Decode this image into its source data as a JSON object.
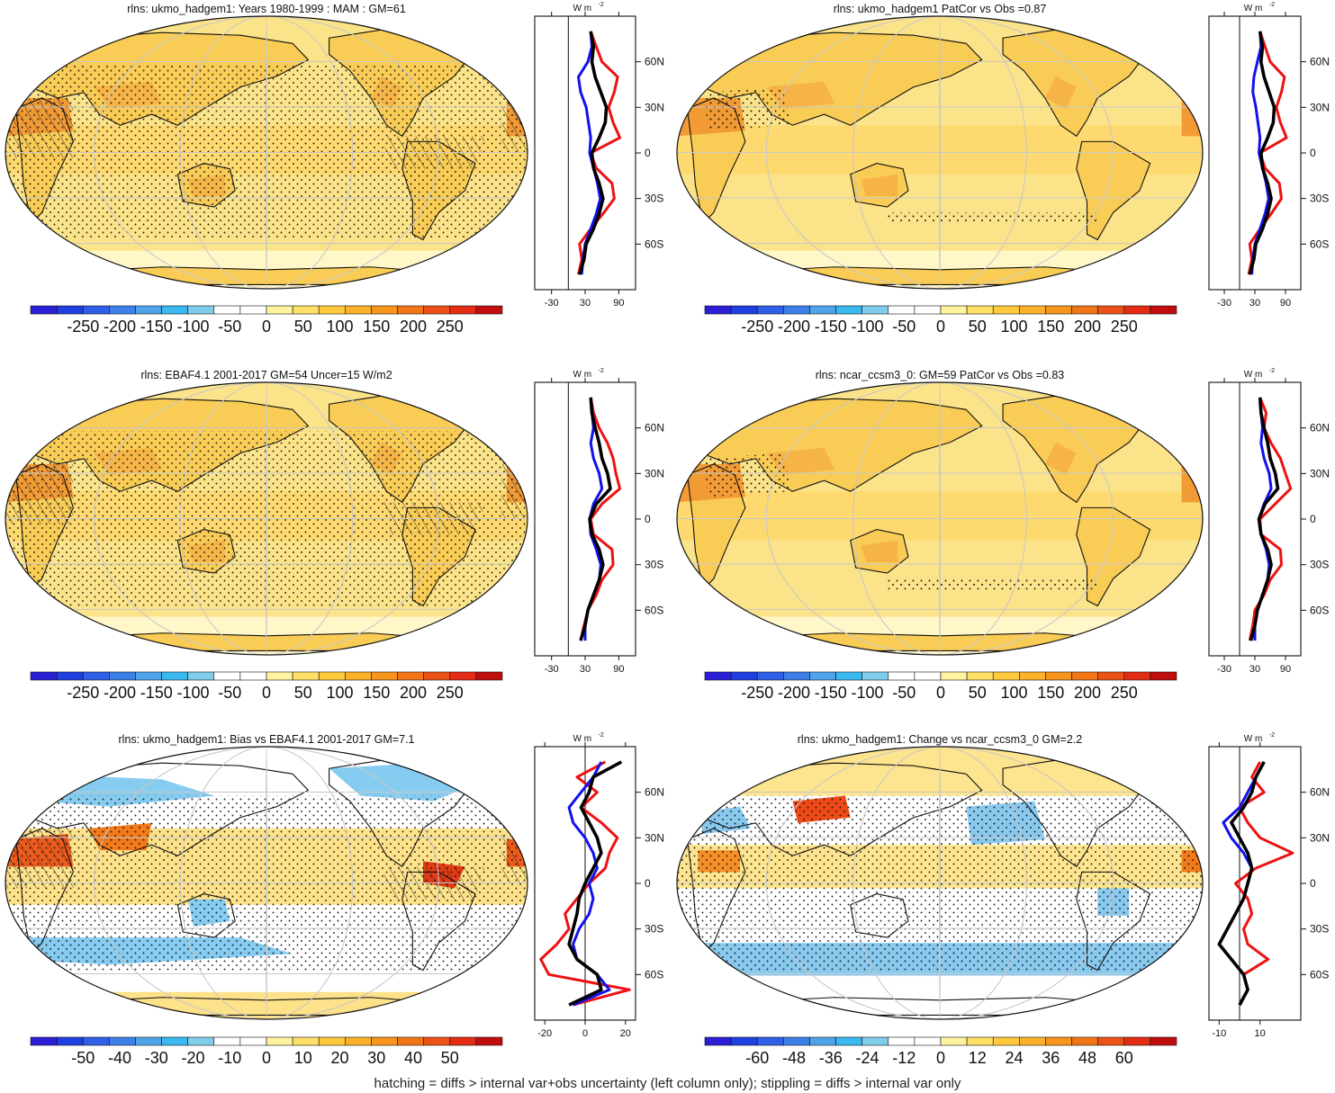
{
  "footnote": "hatching = diffs > internal var+obs uncertainty (left column only); stippling = diffs > internal var only",
  "colors": {
    "scale_abs": [
      "#2a1fd6",
      "#1f3fe0",
      "#2f5fe6",
      "#3d7fe8",
      "#4fa3ea",
      "#39b9f0",
      "#7fcdea",
      "#ffffff",
      "#ffffff",
      "#fff3a0",
      "#ffe067",
      "#ffc93c",
      "#fdb12a",
      "#f7951c",
      "#f27617",
      "#ec5215",
      "#e42b14",
      "#c00d0d"
    ],
    "profile_blue": "#1111ee",
    "profile_red": "#ee1111",
    "profile_black": "#000000",
    "ocean_base": "#fbe38a",
    "land_base": "#f9cc55",
    "hot": "#f29a33"
  },
  "chart_data": [
    {
      "id": "p1",
      "type": "heatmap",
      "title": "rlns: ukmo_hadgem1: Years 1980-1999 : MAM : GM=61",
      "colorbar_ticks": [
        "-250",
        "-200",
        "-150",
        "-100",
        "-50",
        "0",
        "50",
        "100",
        "150",
        "200",
        "250"
      ],
      "style": "abs",
      "hatch": true,
      "stipple": true,
      "profile": {
        "unit": "W m",
        "unit_sup": "-2",
        "xticks": [
          "-30",
          "30",
          "90"
        ],
        "xlim": [
          -60,
          120
        ],
        "yticks": [
          "60N",
          "30N",
          "0",
          "30S",
          "60S"
        ],
        "series": [
          {
            "color": "black",
            "lat": [
              80,
              70,
              60,
              50,
              40,
              30,
              20,
              10,
              0,
              -10,
              -20,
              -30,
              -40,
              -50,
              -60,
              -70,
              -80
            ],
            "values": [
              40,
              45,
              42,
              48,
              58,
              68,
              66,
              55,
              42,
              45,
              55,
              62,
              55,
              45,
              32,
              28,
              20
            ]
          },
          {
            "color": "blue",
            "lat": [
              80,
              70,
              60,
              50,
              40,
              30,
              20,
              10,
              0,
              -10,
              -20,
              -30,
              -40,
              -50,
              -60,
              -70,
              -80
            ],
            "values": [
              40,
              42,
              35,
              18,
              22,
              32,
              36,
              40,
              38,
              45,
              52,
              57,
              50,
              40,
              30,
              26,
              24
            ]
          },
          {
            "color": "red",
            "lat": [
              80,
              70,
              60,
              50,
              40,
              30,
              20,
              10,
              0,
              -10,
              -20,
              -30,
              -40,
              -50,
              -60,
              -70,
              -80
            ],
            "values": [
              40,
              50,
              60,
              88,
              82,
              72,
              80,
              92,
              40,
              50,
              78,
              82,
              62,
              40,
              20,
              24,
              18
            ]
          }
        ]
      }
    },
    {
      "id": "p2",
      "type": "heatmap",
      "title": "rlns: ukmo_hadgem1 PatCor vs Obs =0.87",
      "colorbar_ticks": [
        "-250",
        "-200",
        "-150",
        "-100",
        "-50",
        "0",
        "50",
        "100",
        "150",
        "200",
        "250"
      ],
      "style": "abs",
      "hatch": false,
      "stipple": true,
      "profile": {
        "unit": "W m",
        "unit_sup": "-2",
        "xticks": [
          "-30",
          "30",
          "90"
        ],
        "xlim": [
          -60,
          120
        ],
        "yticks": [
          "60N",
          "30N",
          "0",
          "30S",
          "60S"
        ],
        "series": [
          {
            "color": "black",
            "lat": [
              80,
              70,
              60,
              50,
              40,
              30,
              20,
              10,
              0,
              -10,
              -20,
              -30,
              -40,
              -50,
              -60,
              -70,
              -80
            ],
            "values": [
              40,
              45,
              42,
              48,
              58,
              68,
              66,
              55,
              42,
              45,
              55,
              62,
              55,
              45,
              32,
              28,
              20
            ]
          },
          {
            "color": "blue",
            "lat": [
              80,
              70,
              60,
              50,
              40,
              30,
              20,
              10,
              0,
              -10,
              -20,
              -30,
              -40,
              -50,
              -60,
              -70,
              -80
            ],
            "values": [
              40,
              42,
              35,
              28,
              26,
              32,
              36,
              40,
              38,
              45,
              52,
              57,
              50,
              40,
              30,
              26,
              24
            ]
          },
          {
            "color": "red",
            "lat": [
              80,
              70,
              60,
              50,
              40,
              30,
              20,
              10,
              0,
              -10,
              -20,
              -30,
              -40,
              -50,
              -60,
              -70,
              -80
            ],
            "values": [
              40,
              50,
              60,
              88,
              82,
              72,
              80,
              92,
              40,
              50,
              78,
              82,
              62,
              40,
              20,
              24,
              18
            ]
          }
        ]
      }
    },
    {
      "id": "p3",
      "type": "heatmap",
      "title": "rlns: EBAF4.1 2001-2017 GM=54 Uncer=15 W/m2",
      "colorbar_ticks": [
        "-250",
        "-200",
        "-150",
        "-100",
        "-50",
        "0",
        "50",
        "100",
        "150",
        "200",
        "250"
      ],
      "style": "abs",
      "hatch": true,
      "stipple": true,
      "profile": {
        "unit": "W m",
        "unit_sup": "-2",
        "xticks": [
          "-30",
          "30",
          "90"
        ],
        "xlim": [
          -60,
          120
        ],
        "yticks": [
          "60N",
          "30N",
          "0",
          "30S",
          "60S"
        ],
        "series": [
          {
            "color": "black",
            "lat": [
              80,
              70,
              60,
              50,
              40,
              30,
              20,
              10,
              0,
              -10,
              -20,
              -30,
              -40,
              -50,
              -60,
              -70,
              -80
            ],
            "values": [
              40,
              42,
              48,
              55,
              60,
              70,
              75,
              50,
              38,
              42,
              55,
              62,
              55,
              45,
              35,
              30,
              22
            ]
          },
          {
            "color": "blue",
            "lat": [
              80,
              70,
              60,
              50,
              40,
              30,
              20,
              10,
              0,
              -10,
              -20,
              -30,
              -40,
              -50,
              -60,
              -70,
              -80
            ],
            "values": [
              40,
              42,
              45,
              40,
              45,
              55,
              60,
              45,
              38,
              40,
              50,
              58,
              55,
              45,
              35,
              30,
              30
            ]
          },
          {
            "color": "red",
            "lat": [
              80,
              70,
              60,
              50,
              40,
              30,
              20,
              10,
              0,
              -10,
              -20,
              -30,
              -40,
              -50,
              -60,
              -70,
              -80
            ],
            "values": [
              40,
              45,
              55,
              70,
              80,
              85,
              92,
              60,
              40,
              45,
              78,
              80,
              60,
              50,
              35,
              28,
              22
            ]
          }
        ]
      }
    },
    {
      "id": "p4",
      "type": "heatmap",
      "title": "rlns: ncar_ccsm3_0: GM=59 PatCor vs Obs =0.83",
      "colorbar_ticks": [
        "-250",
        "-200",
        "-150",
        "-100",
        "-50",
        "0",
        "50",
        "100",
        "150",
        "200",
        "250"
      ],
      "style": "abs",
      "hatch": false,
      "stipple": true,
      "profile": {
        "unit": "W m",
        "unit_sup": "-2",
        "xticks": [
          "-30",
          "30",
          "90"
        ],
        "xlim": [
          -60,
          120
        ],
        "yticks": [
          "60N",
          "30N",
          "0",
          "30S",
          "60S"
        ],
        "series": [
          {
            "color": "black",
            "lat": [
              80,
              70,
              60,
              50,
              40,
              30,
              20,
              10,
              0,
              -10,
              -20,
              -30,
              -40,
              -50,
              -60,
              -70,
              -80
            ],
            "values": [
              40,
              42,
              48,
              55,
              60,
              70,
              75,
              50,
              38,
              42,
              55,
              62,
              55,
              45,
              35,
              30,
              22
            ]
          },
          {
            "color": "blue",
            "lat": [
              80,
              70,
              60,
              50,
              40,
              30,
              20,
              10,
              0,
              -10,
              -20,
              -30,
              -40,
              -50,
              -60,
              -70,
              -80
            ],
            "values": [
              40,
              42,
              45,
              42,
              48,
              58,
              62,
              48,
              38,
              42,
              52,
              58,
              55,
              45,
              35,
              30,
              30
            ]
          },
          {
            "color": "red",
            "lat": [
              80,
              70,
              60,
              50,
              40,
              30,
              20,
              10,
              0,
              -10,
              -20,
              -30,
              -40,
              -50,
              -60,
              -70,
              -80
            ],
            "values": [
              40,
              52,
              48,
              62,
              80,
              90,
              100,
              70,
              40,
              42,
              80,
              82,
              60,
              48,
              30,
              26,
              20
            ]
          }
        ]
      }
    },
    {
      "id": "p5",
      "type": "heatmap",
      "title": "rlns: ukmo_hadgem1: Bias vs EBAF4.1 2001-2017 GM=7.1",
      "colorbar_ticks": [
        "-50",
        "-40",
        "-30",
        "-20",
        "-10",
        "0",
        "10",
        "20",
        "30",
        "40",
        "50"
      ],
      "style": "bias",
      "hatch": true,
      "stipple": true,
      "profile": {
        "unit": "W m",
        "unit_sup": "-2",
        "xticks": [
          "-20",
          "0",
          "20"
        ],
        "xlim": [
          -25,
          25
        ],
        "yticks": [
          "60N",
          "30N",
          "0",
          "30S",
          "60S"
        ],
        "series": [
          {
            "color": "black",
            "lat": [
              80,
              70,
              60,
              50,
              40,
              30,
              20,
              10,
              0,
              -10,
              -20,
              -30,
              -40,
              -50,
              -60,
              -70,
              -80
            ],
            "values": [
              18,
              4,
              2,
              -2,
              2,
              6,
              8,
              4,
              0,
              -3,
              -4,
              -6,
              -8,
              -4,
              6,
              8,
              -8
            ]
          },
          {
            "color": "blue",
            "lat": [
              80,
              70,
              60,
              50,
              40,
              30,
              20,
              10,
              0,
              -10,
              -20,
              -30,
              -40,
              -50,
              -60,
              -70,
              -80
            ],
            "values": [
              8,
              4,
              -2,
              -8,
              -6,
              0,
              4,
              6,
              2,
              4,
              2,
              -3,
              -6,
              -4,
              6,
              12,
              -6
            ]
          },
          {
            "color": "red",
            "lat": [
              80,
              70,
              60,
              50,
              40,
              30,
              20,
              10,
              0,
              -10,
              -20,
              -30,
              -40,
              -50,
              -60,
              -70,
              -80
            ],
            "values": [
              10,
              -4,
              6,
              -2,
              8,
              16,
              12,
              10,
              2,
              -4,
              -10,
              -8,
              -14,
              -22,
              -18,
              22,
              -6
            ]
          }
        ]
      }
    },
    {
      "id": "p6",
      "type": "heatmap",
      "title": "rlns: ukmo_hadgem1: Change vs ncar_ccsm3_0 GM=2.2",
      "colorbar_ticks": [
        "-60",
        "-48",
        "-36",
        "-24",
        "-12",
        "0",
        "12",
        "24",
        "36",
        "48",
        "60"
      ],
      "style": "change",
      "hatch": false,
      "stipple": true,
      "profile": {
        "unit": "W m",
        "unit_sup": "-2",
        "xticks": [
          "-10",
          "10"
        ],
        "xlim": [
          -15,
          30
        ],
        "yticks": [
          "60N",
          "30N",
          "0",
          "30S",
          "60S"
        ],
        "series": [
          {
            "color": "black",
            "lat": [
              80,
              70,
              60,
              50,
              40,
              30,
              20,
              10,
              0,
              -10,
              -20,
              -30,
              -40,
              -50,
              -60,
              -70,
              -80
            ],
            "values": [
              12,
              8,
              6,
              2,
              -4,
              0,
              4,
              6,
              4,
              2,
              -2,
              -6,
              -10,
              -4,
              2,
              4,
              0
            ]
          },
          {
            "color": "blue",
            "lat": [
              80,
              70,
              60,
              50,
              40,
              30,
              20,
              10,
              0,
              -10,
              -20,
              -30,
              -40,
              -50,
              -60,
              -70,
              -80
            ],
            "values": [
              12,
              8,
              4,
              0,
              -8,
              -4,
              2,
              6,
              4,
              2,
              -2,
              -6,
              -10,
              -4,
              2,
              4,
              0
            ]
          },
          {
            "color": "red",
            "lat": [
              80,
              70,
              60,
              50,
              40,
              30,
              20,
              10,
              0,
              -10,
              -20,
              -30,
              -40,
              -50,
              -60,
              -70,
              -80
            ],
            "values": [
              10,
              6,
              12,
              0,
              4,
              10,
              26,
              8,
              -2,
              4,
              6,
              2,
              4,
              14,
              2,
              4,
              0
            ]
          }
        ]
      }
    }
  ]
}
